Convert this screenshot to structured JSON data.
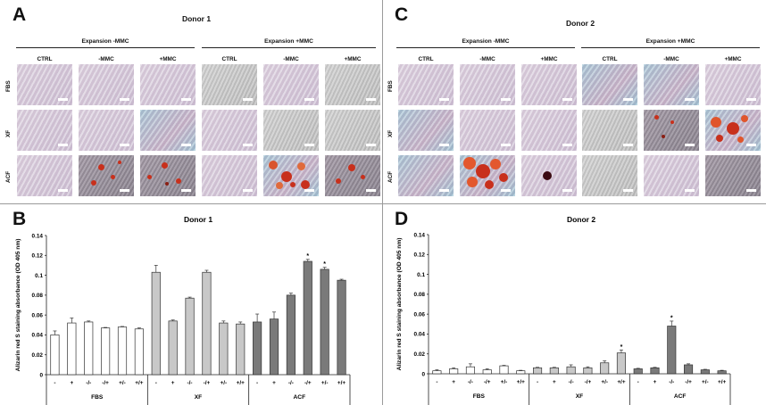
{
  "figure": {
    "panels": {
      "A": {
        "letter": "A",
        "title": "Donor 1",
        "group_left": "Expansion -MMC",
        "group_right": "Expansion +MMC"
      },
      "B": {
        "letter": "B"
      },
      "C": {
        "letter": "C",
        "title": "Donor 2",
        "group_left": "Expansion -MMC",
        "group_right": "Expansion +MMC"
      },
      "D": {
        "letter": "D"
      }
    },
    "micro_columns": [
      "CTRL",
      "-MMC",
      "+MMC",
      "CTRL",
      "-MMC",
      "+MMC"
    ],
    "micro_rows": [
      "FBS",
      "XF",
      "ACF"
    ],
    "colors": {
      "fbs_bar": "#ffffff",
      "xf_bar": "#c8c8c8",
      "acf_bar": "#7a7a7a",
      "alizarin_red": "#c8301c",
      "calcium_blue": "#3fb7d8",
      "bg_lilac": "#d8cede",
      "bg_gray": "#c9c9c9"
    }
  },
  "chart_data": [
    {
      "type": "bar",
      "panel": "B",
      "title": "Donor 1",
      "ylabel": "Alizarin red S staining absorbance (OD 405 nm)",
      "xlabel": "",
      "ylim": [
        0,
        0.14
      ],
      "yticks": [
        "0",
        "0.02",
        "0.04",
        "0.06",
        "0.08",
        "0.1",
        "0.12",
        "0.14"
      ],
      "categories": [
        "-",
        "+",
        "-/-",
        "-/+",
        "+/-",
        "+/+",
        "-",
        "+",
        "-/-",
        "-/+",
        "+/-",
        "+/+",
        "-",
        "+",
        "-/-",
        "-/+",
        "+/-",
        "+/+"
      ],
      "groups": [
        "FBS",
        "XF",
        "ACF"
      ],
      "values": [
        0.04,
        0.052,
        0.053,
        0.047,
        0.048,
        0.046,
        0.103,
        0.054,
        0.077,
        0.103,
        0.052,
        0.051,
        0.053,
        0.056,
        0.08,
        0.114,
        0.106,
        0.095
      ],
      "errors": [
        0.004,
        0.005,
        0.001,
        0.0005,
        0.0005,
        0.001,
        0.007,
        0.001,
        0.001,
        0.002,
        0.002,
        0.002,
        0.008,
        0.007,
        0.002,
        0.002,
        0.002,
        0.001
      ],
      "significance": [
        "",
        "",
        "",
        "",
        "",
        "",
        "",
        "",
        "",
        "",
        "",
        "",
        "",
        "",
        "",
        "*",
        "*",
        ""
      ]
    },
    {
      "type": "bar",
      "panel": "D",
      "title": "Donor 2",
      "ylabel": "Alizarin red S staining absorbance (OD 405 nm)",
      "xlabel": "",
      "ylim": [
        0,
        0.14
      ],
      "yticks": [
        "0",
        "0.02",
        "0.04",
        "0.06",
        "0.08",
        "0.1",
        "0.12",
        "0.14"
      ],
      "categories": [
        "-",
        "+",
        "-/-",
        "-/+",
        "+/-",
        "+/+",
        "-",
        "+",
        "-/-",
        "-/+",
        "+/-",
        "+/+",
        "-",
        "+",
        "-/-",
        "-/+",
        "+/-",
        "+/+"
      ],
      "groups": [
        "FBS",
        "XF",
        "ACF"
      ],
      "values": [
        0.003,
        0.005,
        0.007,
        0.004,
        0.008,
        0.003,
        0.006,
        0.006,
        0.007,
        0.006,
        0.011,
        0.021,
        0.005,
        0.006,
        0.048,
        0.009,
        0.004,
        0.003
      ],
      "errors": [
        0.001,
        0.001,
        0.003,
        0.001,
        0.0005,
        0.0005,
        0.0005,
        0.0005,
        0.002,
        0.001,
        0.002,
        0.003,
        0.0005,
        0.0005,
        0.005,
        0.001,
        0.0005,
        0.0005
      ],
      "significance": [
        "",
        "",
        "",
        "",
        "",
        "",
        "",
        "",
        "",
        "",
        "",
        "*",
        "",
        "",
        "*",
        "",
        "",
        ""
      ]
    }
  ]
}
